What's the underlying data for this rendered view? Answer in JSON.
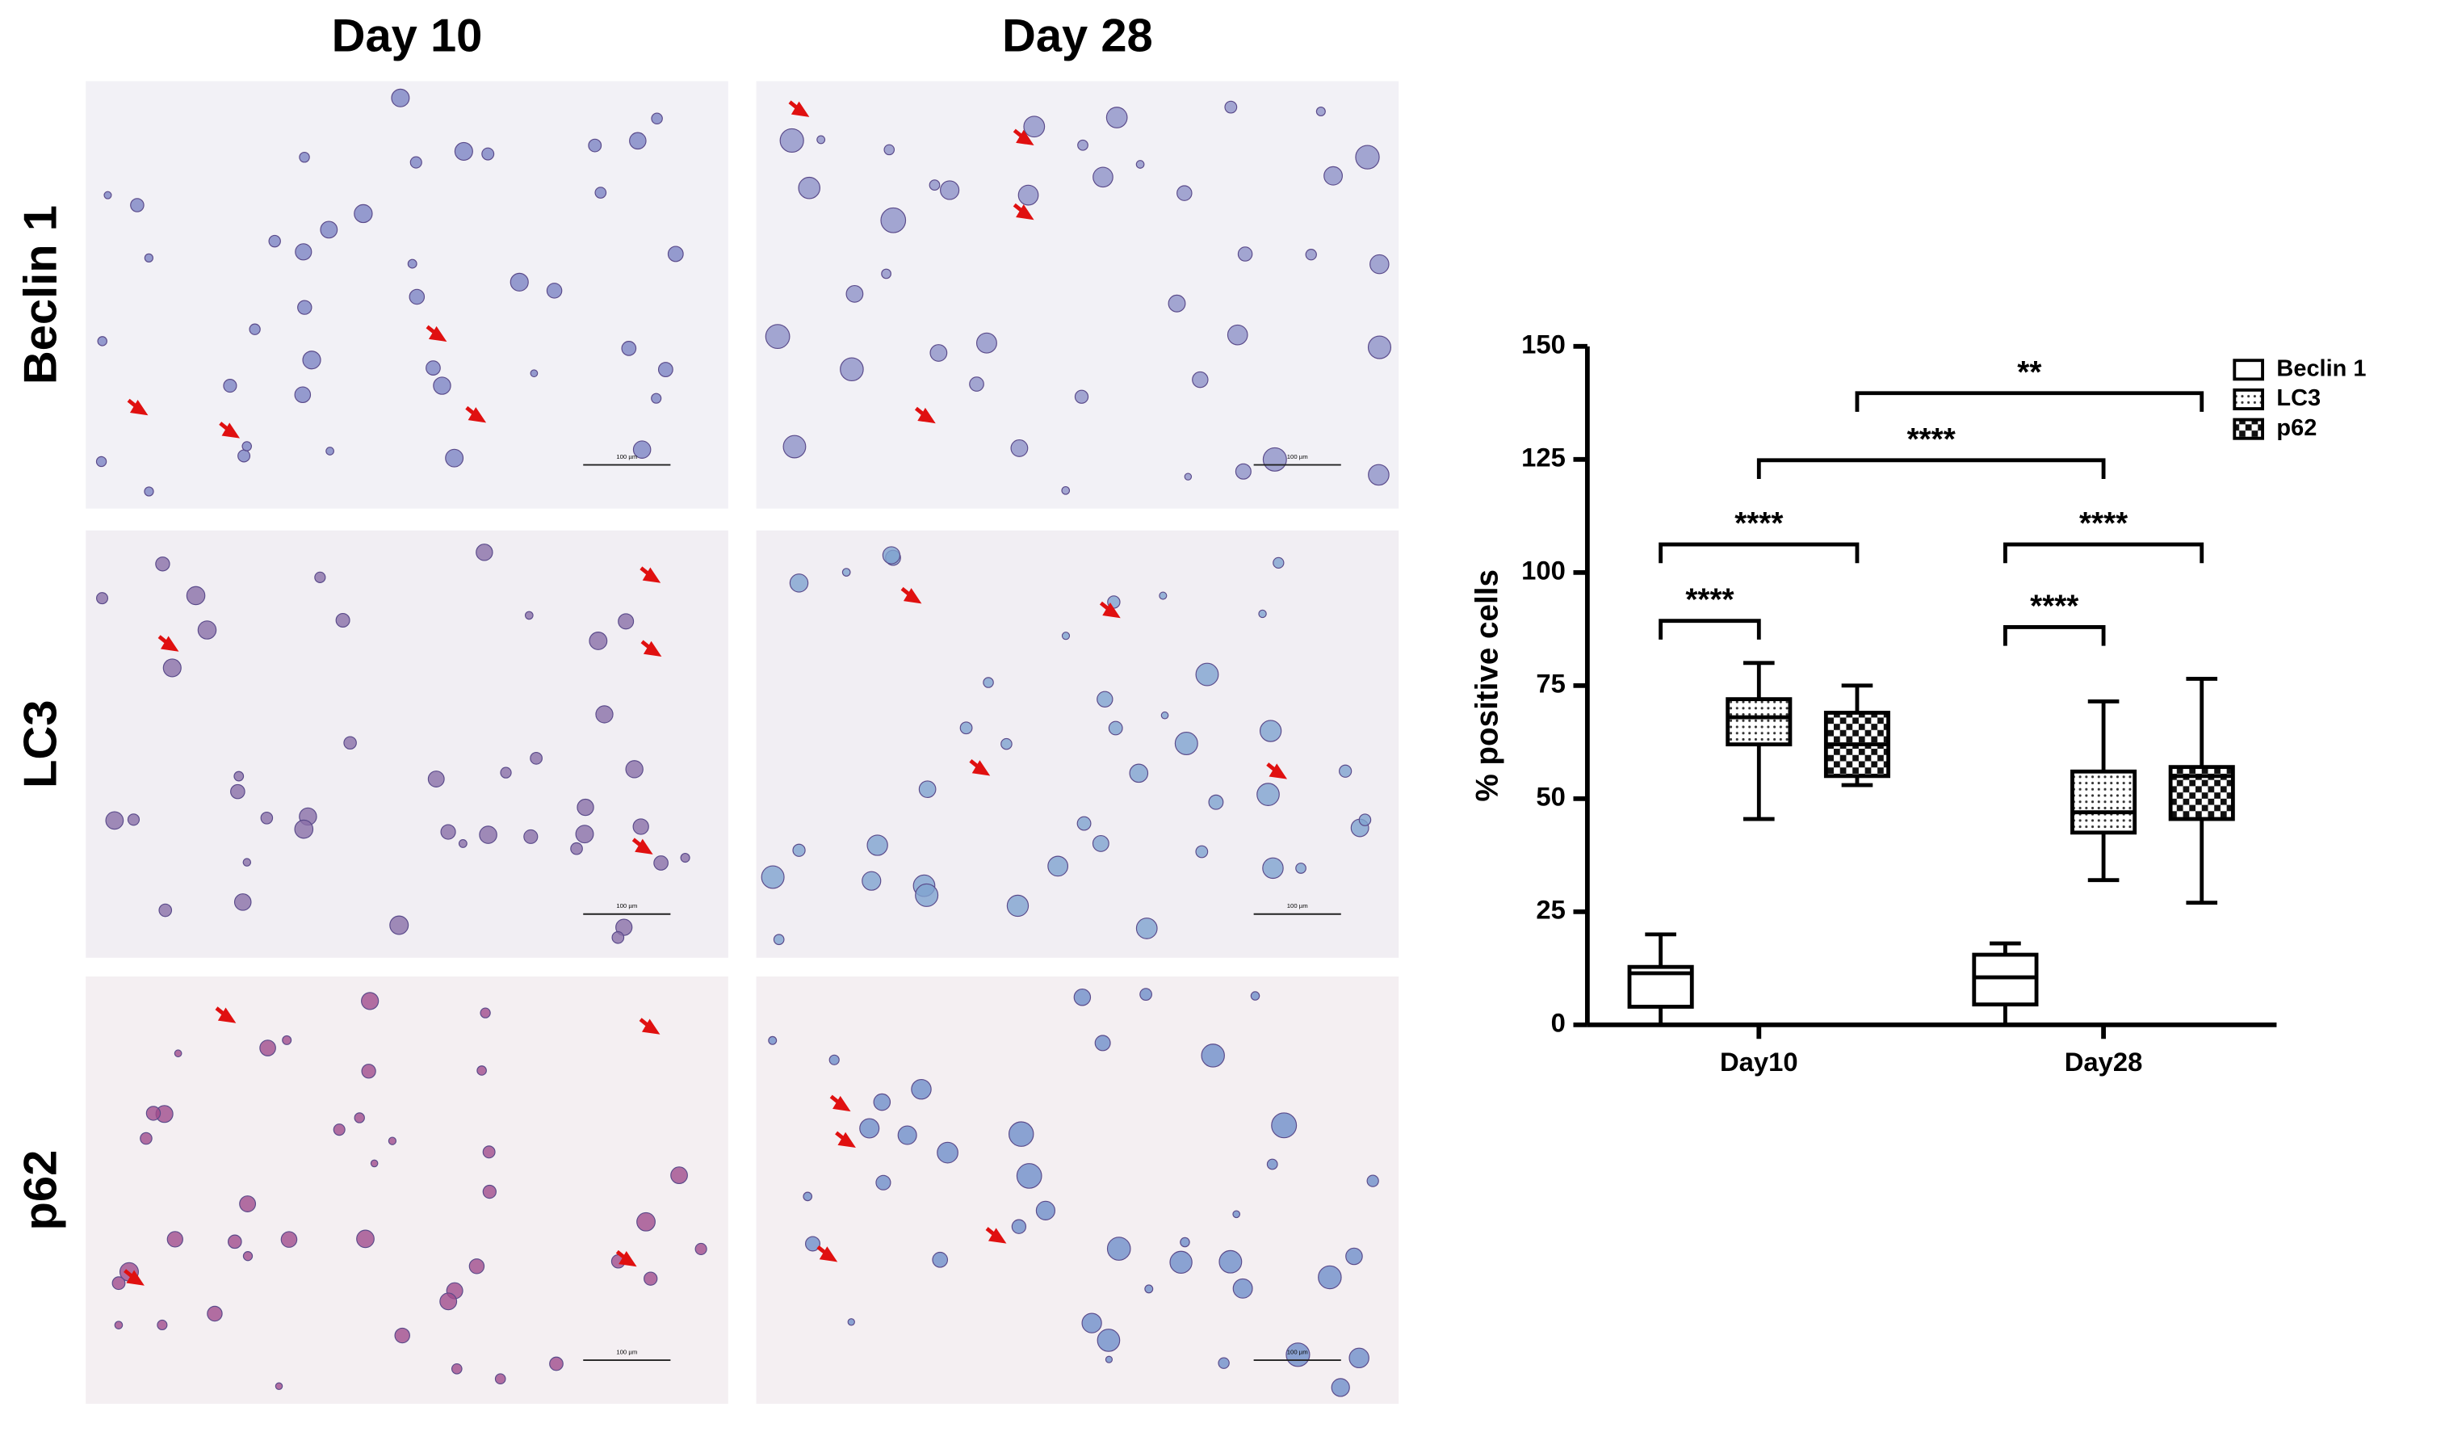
{
  "panels": {
    "columns": [
      "Day 10",
      "Day 28"
    ],
    "rows": [
      "Beclin 1",
      "LC3",
      "p62"
    ],
    "scale_bar_label": "100 µm"
  },
  "chart_data": {
    "type": "box",
    "ylabel": "% positive cells",
    "categories": [
      "Day10",
      "Day28"
    ],
    "ylim": [
      0,
      150
    ],
    "yticks": [
      0,
      25,
      50,
      75,
      100,
      125,
      150
    ],
    "series": [
      {
        "name": "Beclin 1",
        "color": "#000000",
        "fill": "none",
        "values": [
          {
            "min": 0,
            "q1": 4,
            "median": 11.4,
            "q3": 12.8,
            "max": 20
          },
          {
            "min": 0,
            "q1": 4.5,
            "median": 10.5,
            "q3": 15.5,
            "max": 18
          }
        ]
      },
      {
        "name": "LC3",
        "color": "#000000",
        "fill": "dots",
        "values": [
          {
            "min": 45.5,
            "q1": 62,
            "median": 68,
            "q3": 72,
            "max": 80
          },
          {
            "min": 32,
            "q1": 42.5,
            "median": 47,
            "q3": 56,
            "max": 71.5
          }
        ]
      },
      {
        "name": "p62",
        "color": "#000000",
        "fill": "checker",
        "values": [
          {
            "min": 53,
            "q1": 55,
            "median": 62,
            "q3": 69,
            "max": 75
          },
          {
            "min": 27,
            "q1": 45.5,
            "median": 55,
            "q3": 57,
            "max": 76.5
          }
        ]
      }
    ],
    "significance": [
      {
        "from": [
          0,
          0
        ],
        "to": [
          0,
          1
        ],
        "label": "****"
      },
      {
        "from": [
          0,
          0
        ],
        "to": [
          0,
          2
        ],
        "label": "****"
      },
      {
        "from": [
          1,
          0
        ],
        "to": [
          1,
          1
        ],
        "label": "****"
      },
      {
        "from": [
          1,
          0
        ],
        "to": [
          1,
          2
        ],
        "label": "****"
      },
      {
        "from": [
          0,
          1
        ],
        "to": [
          1,
          1
        ],
        "label": "****"
      },
      {
        "from": [
          0,
          2
        ],
        "to": [
          1,
          2
        ],
        "label": "**"
      }
    ],
    "legend": "top-right"
  }
}
